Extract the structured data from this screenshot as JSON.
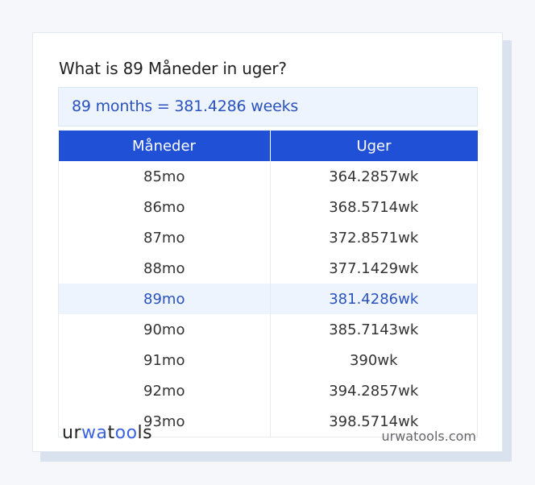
{
  "title": "What is 89 Måneder in uger?",
  "result": "89 months = 381.4286 weeks",
  "table": {
    "headers": [
      "Måneder",
      "Uger"
    ],
    "rows": [
      [
        "85mo",
        "364.2857wk"
      ],
      [
        "86mo",
        "368.5714wk"
      ],
      [
        "87mo",
        "372.8571wk"
      ],
      [
        "88mo",
        "377.1429wk"
      ],
      [
        "89mo",
        "381.4286wk"
      ],
      [
        "90mo",
        "385.7143wk"
      ],
      [
        "91mo",
        "390wk"
      ],
      [
        "92mo",
        "394.2857wk"
      ],
      [
        "93mo",
        "398.5714wk"
      ]
    ],
    "highlighted_row": 4
  },
  "footer": {
    "logo_parts": [
      "ur",
      "wa",
      "t",
      "oo",
      "ls"
    ],
    "site": "urwatools.com"
  },
  "colors": {
    "accent": "#1f50d6",
    "highlight_text": "#2a52be",
    "highlight_bg": "#edf4fd"
  }
}
